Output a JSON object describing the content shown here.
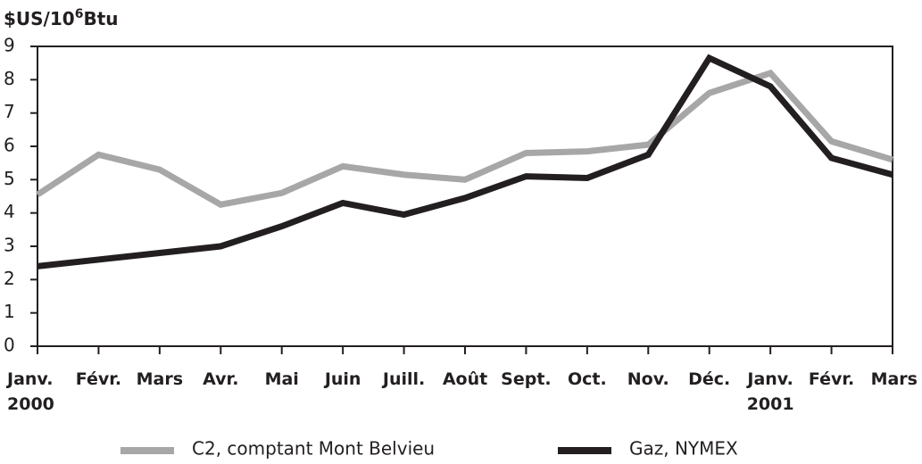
{
  "chart_data": {
    "type": "line",
    "y_label": {
      "base": "$US/10",
      "sup": "6",
      "unit": "Btu"
    },
    "categories": [
      "Janv.",
      "Févr.",
      "Mars",
      "Avr.",
      "Mai",
      "Juin",
      "Juill.",
      "Août",
      "Sept.",
      "Oct.",
      "Nov.",
      "Déc.",
      "Janv.",
      "Févr.",
      "Mars"
    ],
    "years": [
      "2000",
      null,
      null,
      null,
      null,
      null,
      null,
      null,
      null,
      null,
      null,
      null,
      "2001",
      null,
      null
    ],
    "series": [
      {
        "name": "C2, comptant Mont Belvieu",
        "color": "#a7a7a7",
        "values": [
          4.55,
          5.75,
          5.3,
          4.25,
          4.6,
          5.4,
          5.15,
          5.0,
          5.8,
          5.85,
          6.05,
          7.6,
          8.2,
          6.15,
          5.6
        ]
      },
      {
        "name": "Gaz, NYMEX",
        "color": "#231f20",
        "values": [
          2.4,
          2.6,
          2.8,
          3.0,
          3.6,
          4.3,
          3.95,
          4.45,
          5.1,
          5.05,
          5.75,
          8.65,
          7.8,
          5.65,
          5.15
        ]
      }
    ],
    "ylim": [
      0,
      9
    ],
    "yticks": [
      0,
      1,
      2,
      3,
      4,
      5,
      6,
      7,
      8,
      9
    ]
  }
}
